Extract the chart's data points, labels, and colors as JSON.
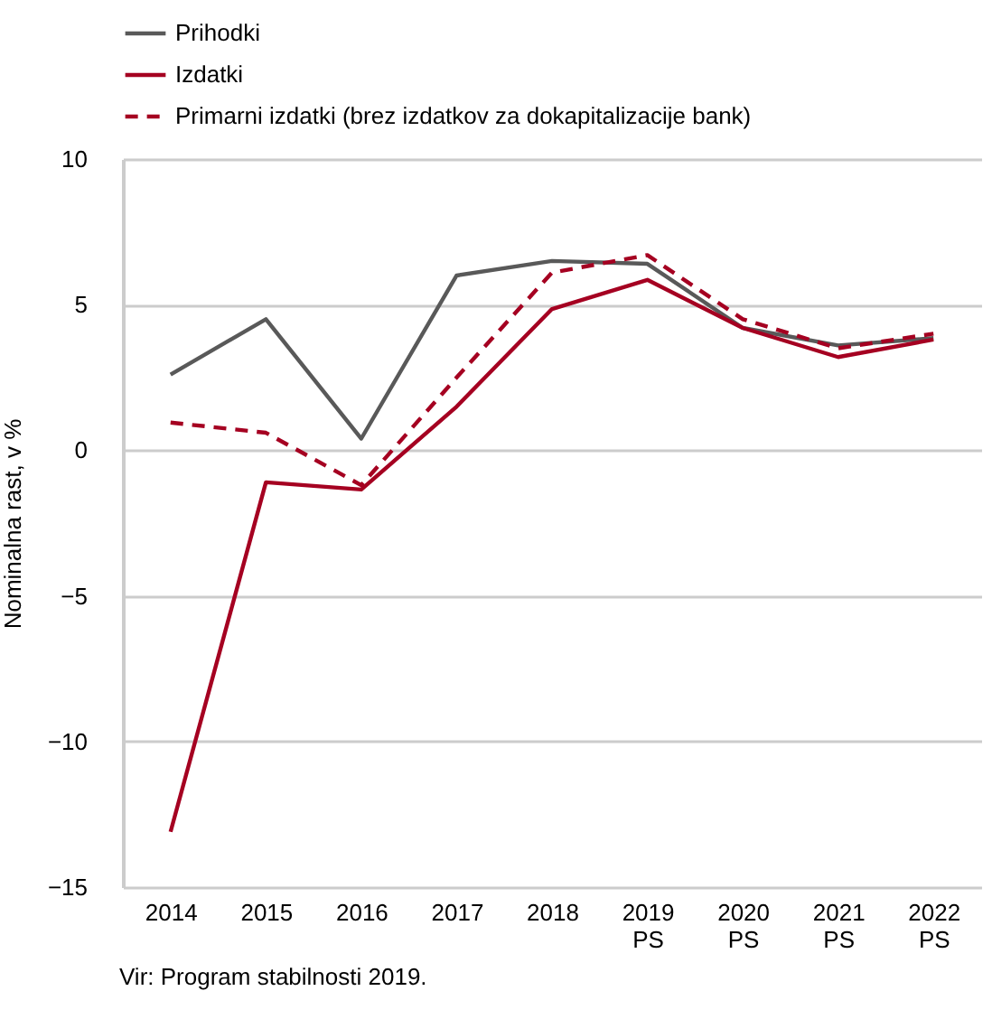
{
  "chart_data": {
    "type": "line",
    "ylabel": "Nominalna rast, v %",
    "categories": [
      "2014",
      "2015",
      "2016",
      "2017",
      "2018",
      "2019\nPS",
      "2020\nPS",
      "2021\nPS",
      "2022\nPS"
    ],
    "series": [
      {
        "name": "Prihodki",
        "color": "#595959",
        "line_style": "solid",
        "values": [
          2.6,
          4.5,
          0.4,
          6.0,
          6.5,
          6.4,
          4.2,
          3.6,
          3.85
        ]
      },
      {
        "name": "Izdatki",
        "color": "#a50021",
        "line_style": "solid",
        "values": [
          -13.1,
          -1.1,
          -1.35,
          1.5,
          4.85,
          5.85,
          4.2,
          3.2,
          3.8
        ]
      },
      {
        "name": "Primarni izdatki (brez izdatkov za dokapitalizacije bank)",
        "color": "#a50021",
        "line_style": "dashed",
        "values": [
          0.95,
          0.6,
          -1.2,
          2.5,
          6.1,
          6.7,
          4.5,
          3.5,
          4.0
        ]
      }
    ],
    "ylim": [
      -15,
      10
    ],
    "yticks": [
      -15,
      -10,
      -5,
      0,
      5,
      10
    ],
    "grid": "y",
    "legend": "top left",
    "marker": "none",
    "annotations": [
      "Vir: Program stabilnosti  2019."
    ]
  }
}
